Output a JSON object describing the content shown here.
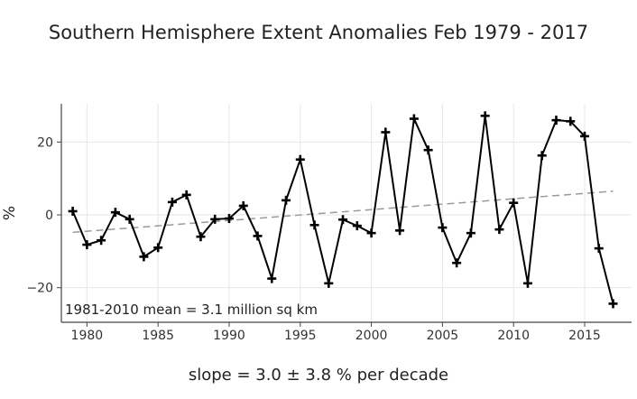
{
  "chart_data": {
    "type": "line",
    "title": "Southern Hemisphere Extent Anomalies Feb 1979 - 2017",
    "ylabel": "%",
    "xlabel": "",
    "annotation": "1981-2010 mean = 3.1 million sq km",
    "footer": "slope = 3.0 ± 3.8 % per decade",
    "xlim": [
      1978.2,
      2018.3
    ],
    "ylim": [
      -29.5,
      30.5
    ],
    "xticks": [
      1980,
      1985,
      1990,
      1995,
      2000,
      2005,
      2010,
      2015
    ],
    "yticks": [
      -20,
      0,
      20
    ],
    "grid": true,
    "marker": "plus",
    "series": [
      {
        "x": [
          1979,
          1980,
          1981,
          1982,
          1983,
          1984,
          1985,
          1986,
          1987,
          1988,
          1989,
          1990,
          1991,
          1992,
          1993,
          1994,
          1995,
          1996,
          1997,
          1998,
          1999,
          2000,
          2001,
          2002,
          2003,
          2004,
          2005,
          2006,
          2007,
          2008,
          2009,
          2010,
          2011,
          2012,
          2013,
          2014,
          2015,
          2016,
          2017
        ],
        "values": [
          1.0,
          -8.2,
          -7.0,
          0.7,
          -1.2,
          -11.5,
          -9.0,
          3.5,
          5.5,
          -6.0,
          -1.2,
          -1.0,
          2.5,
          -5.8,
          -17.5,
          4.0,
          15.2,
          -2.8,
          -18.8,
          -1.3,
          -3.0,
          -5.0,
          22.7,
          -4.3,
          26.4,
          17.8,
          -3.5,
          -13.2,
          -5.0,
          27.2,
          -4.0,
          3.3,
          -18.8,
          16.3,
          26.0,
          25.7,
          21.6,
          -9.2,
          -24.4
        ]
      },
      {
        "name": "trend",
        "style": "dashed",
        "x": [
          1979,
          2017
        ],
        "values": [
          -4.8,
          6.5
        ]
      }
    ]
  },
  "colors": {
    "line": "#000000",
    "trend": "#9a9a9a",
    "grid": "#e6e6e6",
    "axis": "#444444"
  }
}
